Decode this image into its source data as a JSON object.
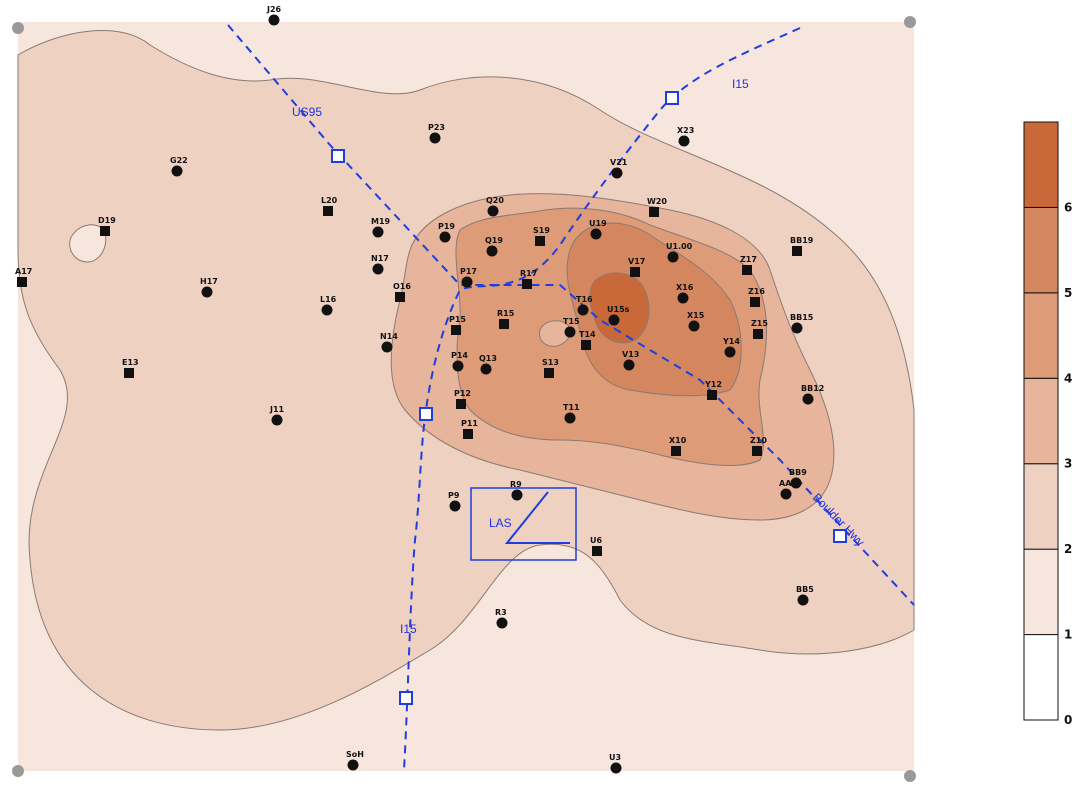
{
  "map": {
    "legend": {
      "levels": [
        {
          "label": "0",
          "color": "#ffffff"
        },
        {
          "label": "1",
          "color": "#f7e6de"
        },
        {
          "label": "2",
          "color": "#efd1c2"
        },
        {
          "label": "3",
          "color": "#e7b49c"
        },
        {
          "label": "4",
          "color": "#dd9b78"
        },
        {
          "label": "5",
          "color": "#d4875e"
        },
        {
          "label": "6",
          "color": "#c9693a"
        }
      ]
    },
    "roads": [
      {
        "label": "US95",
        "name": "us95-road"
      },
      {
        "label": "I15",
        "name": "i15-north-road"
      },
      {
        "label": "I15",
        "name": "i15-south-road"
      },
      {
        "label": "Boulder Hwy",
        "name": "boulder-hwy-road"
      }
    ],
    "city_label": "LAS",
    "stations": [
      {
        "id": "J26",
        "shape": "circle"
      },
      {
        "id": "P23",
        "shape": "circle"
      },
      {
        "id": "X23",
        "shape": "circle"
      },
      {
        "id": "G22",
        "shape": "circle"
      },
      {
        "id": "V21",
        "shape": "circle"
      },
      {
        "id": "Q20",
        "shape": "circle"
      },
      {
        "id": "L20",
        "shape": "square"
      },
      {
        "id": "W20",
        "shape": "square"
      },
      {
        "id": "D19",
        "shape": "square"
      },
      {
        "id": "M19",
        "shape": "circle"
      },
      {
        "id": "P19",
        "shape": "circle"
      },
      {
        "id": "S19",
        "shape": "square"
      },
      {
        "id": "U19",
        "shape": "circle"
      },
      {
        "id": "Q19",
        "shape": "circle"
      },
      {
        "id": "U1.00",
        "shape": "circle"
      },
      {
        "id": "BB19",
        "shape": "square"
      },
      {
        "id": "A17",
        "shape": "square"
      },
      {
        "id": "N17",
        "shape": "circle"
      },
      {
        "id": "H17",
        "shape": "circle"
      },
      {
        "id": "V17",
        "shape": "square"
      },
      {
        "id": "Z17",
        "shape": "square"
      },
      {
        "id": "P17",
        "shape": "circle"
      },
      {
        "id": "R17",
        "shape": "square"
      },
      {
        "id": "O16",
        "shape": "square"
      },
      {
        "id": "L16",
        "shape": "circle"
      },
      {
        "id": "X16",
        "shape": "circle"
      },
      {
        "id": "Z16",
        "shape": "square"
      },
      {
        "id": "T16",
        "shape": "circle"
      },
      {
        "id": "R15",
        "shape": "square"
      },
      {
        "id": "P15",
        "shape": "square"
      },
      {
        "id": "U15s",
        "shape": "circle"
      },
      {
        "id": "X15",
        "shape": "circle"
      },
      {
        "id": "BB15",
        "shape": "circle"
      },
      {
        "id": "Z15",
        "shape": "square"
      },
      {
        "id": "N14",
        "shape": "circle"
      },
      {
        "id": "T15",
        "shape": "circle"
      },
      {
        "id": "T14",
        "shape": "square"
      },
      {
        "id": "E13",
        "shape": "square"
      },
      {
        "id": "P14",
        "shape": "circle"
      },
      {
        "id": "Y14",
        "shape": "circle"
      },
      {
        "id": "Q13",
        "shape": "circle"
      },
      {
        "id": "S13",
        "shape": "square"
      },
      {
        "id": "V13",
        "shape": "circle"
      },
      {
        "id": "BB12",
        "shape": "circle"
      },
      {
        "id": "Y12",
        "shape": "square"
      },
      {
        "id": "P12",
        "shape": "square"
      },
      {
        "id": "J11",
        "shape": "circle"
      },
      {
        "id": "P11",
        "shape": "square"
      },
      {
        "id": "T11",
        "shape": "circle"
      },
      {
        "id": "X10",
        "shape": "square"
      },
      {
        "id": "Z10",
        "shape": "square"
      },
      {
        "id": "BB9",
        "shape": "circle"
      },
      {
        "id": "AA9",
        "shape": "circle"
      },
      {
        "id": "R9",
        "shape": "circle"
      },
      {
        "id": "P9",
        "shape": "circle"
      },
      {
        "id": "U6",
        "shape": "square"
      },
      {
        "id": "BB5",
        "shape": "circle"
      },
      {
        "id": "R3",
        "shape": "circle"
      },
      {
        "id": "SoH",
        "shape": "circle"
      },
      {
        "id": "U3",
        "shape": "circle"
      }
    ]
  }
}
